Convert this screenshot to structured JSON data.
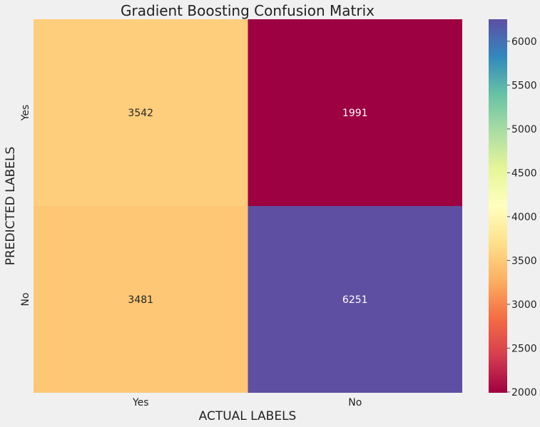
{
  "chart_data": {
    "type": "heatmap",
    "title": "Gradient Boosting Confusion Matrix",
    "xlabel": "ACTUAL LABELS",
    "ylabel": "PREDICTED LABELS",
    "x_categories": [
      "Yes",
      "No"
    ],
    "y_categories": [
      "Yes",
      "No"
    ],
    "values": [
      [
        3542,
        1991
      ],
      [
        3481,
        6251
      ]
    ],
    "colormap": "Spectral",
    "colorbar": {
      "min": 1991,
      "max": 6251,
      "ticks": [
        2000,
        2500,
        3000,
        3500,
        4000,
        4500,
        5000,
        5500,
        6000
      ],
      "stops": [
        "#9e0142",
        "#d53e4f",
        "#f46d43",
        "#fdae61",
        "#fee08b",
        "#ffffbf",
        "#e6f598",
        "#abdda4",
        "#66c2a5",
        "#3288bd",
        "#5e4fa2"
      ]
    },
    "grid": false
  }
}
